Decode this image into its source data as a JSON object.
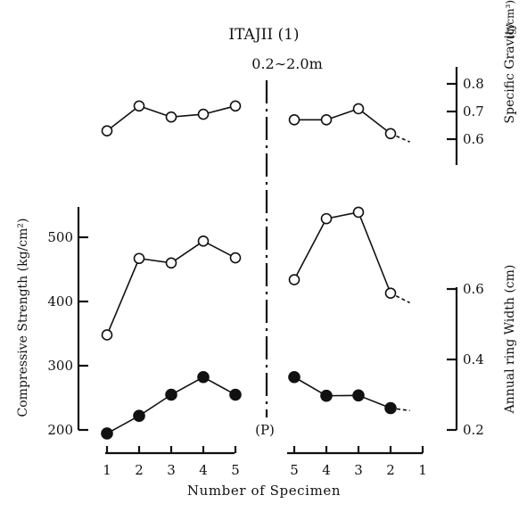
{
  "chart_data": {
    "type": "line",
    "title": "ITAJII (1)",
    "subtitle": "0.2∼2.0m",
    "xlabel": "Number of Specimen",
    "center_label": "(P)",
    "left_panel": {
      "x": [
        1,
        2,
        3,
        4,
        5
      ],
      "x_tick_labels": [
        "1",
        "2",
        "3",
        "4",
        "5"
      ]
    },
    "right_panel": {
      "x": [
        5,
        4,
        3,
        2,
        1
      ],
      "x_tick_labels": [
        "5",
        "4",
        "3",
        "2",
        "1"
      ]
    },
    "axes": {
      "specific_gravity": {
        "label": "Specific Gravity",
        "unit": "(g/cm³)",
        "ticks": [
          0.6,
          0.7,
          0.8
        ],
        "tick_labels": [
          "0.6",
          "0.7",
          "0.8"
        ],
        "ylim": [
          0.55,
          0.85
        ]
      },
      "compressive_strength": {
        "label": "Compressive Strength (kg/cm²)",
        "ticks": [
          200,
          300,
          400,
          500
        ],
        "tick_labels": [
          "200",
          "300",
          "400",
          "500"
        ],
        "ylim": [
          180,
          550
        ]
      },
      "ring_width": {
        "label": "Annual ring Width (cm)",
        "ticks": [
          0.2,
          0.4,
          0.6
        ],
        "tick_labels": [
          "0.2",
          "0.4",
          "0.6"
        ],
        "ylim": [
          0.18,
          0.66
        ]
      }
    },
    "series": [
      {
        "axis": "specific_gravity",
        "marker": "open",
        "left_values": [
          0.63,
          0.72,
          0.68,
          0.69,
          0.72
        ],
        "right_x": [
          5,
          4,
          3,
          2
        ],
        "right_values": [
          0.67,
          0.67,
          0.71,
          0.62
        ],
        "right_trail_to": 0.59
      },
      {
        "axis": "compressive_strength",
        "marker": "open",
        "left_values": [
          348,
          467,
          460,
          494,
          468
        ],
        "right_x": [
          5,
          4,
          3,
          2
        ],
        "right_values": [
          434,
          529,
          539,
          413
        ],
        "right_trail_to": 398
      },
      {
        "axis": "ring_width",
        "marker": "filled",
        "left_values": [
          0.19,
          0.24,
          0.3,
          0.35,
          0.3
        ],
        "right_x": [
          5,
          4,
          3,
          2
        ],
        "right_values": [
          0.35,
          0.297,
          0.298,
          0.262
        ],
        "right_trail_to": 0.255
      }
    ]
  }
}
